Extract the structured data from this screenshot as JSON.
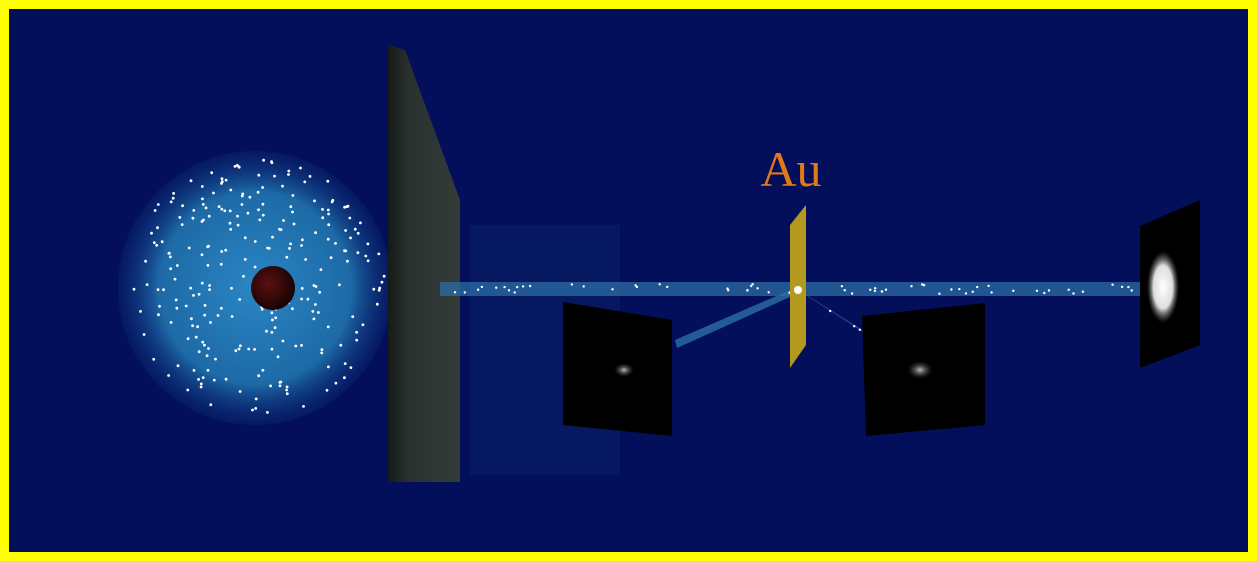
{
  "foil": {
    "label": "Au"
  }
}
